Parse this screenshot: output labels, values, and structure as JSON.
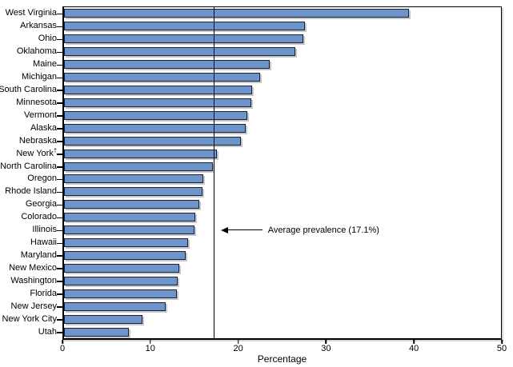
{
  "chart_data": {
    "type": "bar",
    "orientation": "horizontal",
    "title": "",
    "xlabel": "Percentage",
    "xlim": [
      0,
      50
    ],
    "xticks": [
      0,
      10,
      20,
      30,
      40,
      50
    ],
    "grid": false,
    "legend": null,
    "categories": [
      "West Virginia",
      "Arkansas",
      "Ohio",
      "Oklahoma",
      "Maine",
      "Michigan",
      "South Carolina",
      "Minnesota",
      "Vermont",
      "Alaska",
      "Nebraska",
      "New York†",
      "North Carolina",
      "Oregon",
      "Rhode Island",
      "Georgia",
      "Colorado",
      "Illinois",
      "Hawaii",
      "Maryland",
      "New Mexico",
      "Washington",
      "Florida",
      "New Jersey",
      "New York City",
      "Utah"
    ],
    "values": [
      39.5,
      27.6,
      27.4,
      26.5,
      23.5,
      22.4,
      21.5,
      21.4,
      21.0,
      20.8,
      20.2,
      17.5,
      17.0,
      15.9,
      15.8,
      15.5,
      15.0,
      14.9,
      14.2,
      13.9,
      13.2,
      13.0,
      12.9,
      11.6,
      9.0,
      7.4
    ],
    "average_line": {
      "value": 17.1,
      "label": "Average prevalence (17.1%)"
    },
    "annotation_row": "Illinois",
    "colors": {
      "bar_fill": "#6d95c9",
      "bar_border": "#18213b",
      "bar_shadow": "#c6c6c6",
      "axis": "#000000",
      "text": "#000000"
    }
  }
}
